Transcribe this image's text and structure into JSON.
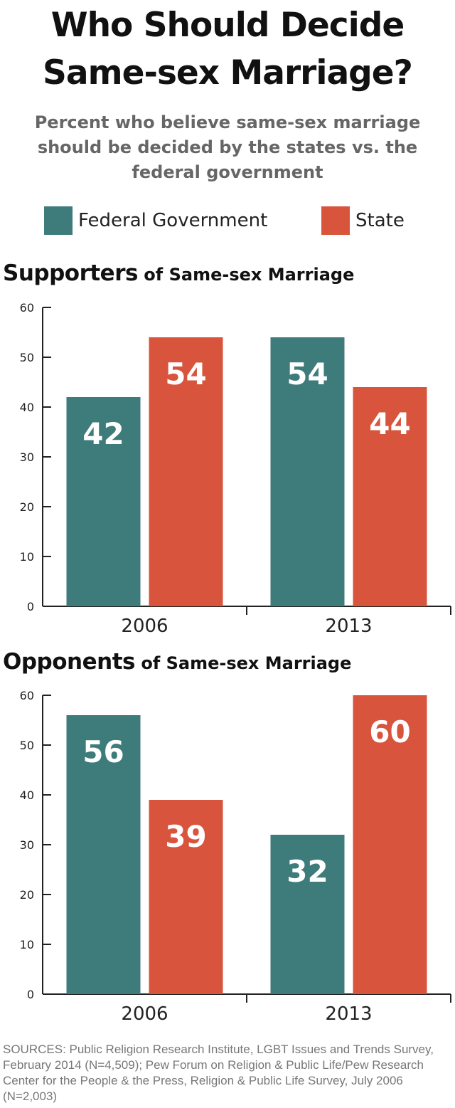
{
  "title": "Who Should Decide\nSame-sex Marriage?",
  "subtitle": "Percent who believe same-sex marriage\nshould be decided by the states vs. the\nfederal government",
  "legend": [
    {
      "label": "Federal Government",
      "color": "#3e7b7b"
    },
    {
      "label": "State",
      "color": "#d9543d"
    }
  ],
  "charts": [
    {
      "heading_strong": "Supporters",
      "heading_rest": " of Same-sex Marriage"
    },
    {
      "heading_strong": "Opponents",
      "heading_rest": " of Same-sex Marriage"
    }
  ],
  "chart_data": [
    {
      "type": "bar",
      "title": "Supporters of Same-sex Marriage",
      "categories": [
        "2006",
        "2013"
      ],
      "series": [
        {
          "name": "Federal Government",
          "values": [
            42,
            54
          ],
          "color": "#3e7b7b"
        },
        {
          "name": "State",
          "values": [
            54,
            44
          ],
          "color": "#d9543d"
        }
      ],
      "yticks": [
        0,
        10,
        20,
        30,
        40,
        50,
        60
      ],
      "ylim": [
        0,
        60
      ],
      "grid": false,
      "data_labels": true
    },
    {
      "type": "bar",
      "title": "Opponents of Same-sex Marriage",
      "categories": [
        "2006",
        "2013"
      ],
      "series": [
        {
          "name": "Federal Government",
          "values": [
            56,
            32
          ],
          "color": "#3e7b7b"
        },
        {
          "name": "State",
          "values": [
            39,
            60
          ],
          "color": "#d9543d"
        }
      ],
      "yticks": [
        0,
        10,
        20,
        30,
        40,
        50,
        60
      ],
      "ylim": [
        0,
        60
      ],
      "grid": false,
      "data_labels": true
    }
  ],
  "sources": "SOURCES: Public Religion Research Institute, LGBT Issues and Trends Survey, February 2014 (N=4,509); Pew Forum on Religion & Public Life/Pew Research Center for the People & the Press, Religion & Public Life Survey, July 2006 (N=2,003)"
}
